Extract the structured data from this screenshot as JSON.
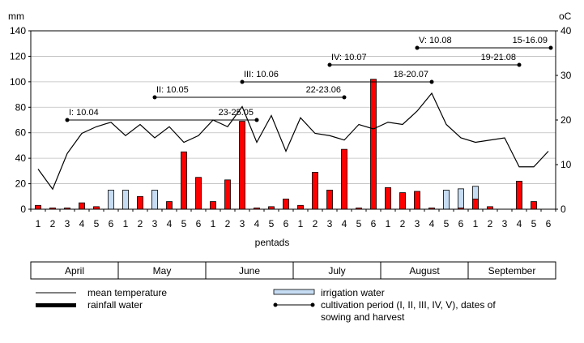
{
  "chart_data": {
    "type": "bar",
    "left_unit": "mm",
    "right_unit": "oC",
    "xlabel": "pentads",
    "left_ylim": [
      0,
      140
    ],
    "left_ticks": [
      "0",
      "20",
      "40",
      "60",
      "80",
      "100",
      "120",
      "140"
    ],
    "right_ylim": [
      0,
      40
    ],
    "right_ticks": [
      "0",
      "10",
      "20",
      "30",
      "40"
    ],
    "pentad_labels": [
      "1",
      "2",
      "3",
      "4",
      "5",
      "6",
      "1",
      "2",
      "3",
      "4",
      "5",
      "6",
      "1",
      "2",
      "3",
      "4",
      "5",
      "6",
      "1",
      "2",
      "3",
      "4",
      "5",
      "6",
      "1",
      "2",
      "3",
      "4",
      "5",
      "6",
      "1",
      "2",
      "3",
      "4",
      "5",
      "6"
    ],
    "months": [
      "April",
      "May",
      "June",
      "July",
      "August",
      "September"
    ],
    "series": [
      {
        "name": "irrigation water",
        "color": "#c6dcf2",
        "values": [
          0,
          0,
          0,
          0,
          0,
          15,
          15,
          0,
          15,
          0,
          0,
          0,
          0,
          0,
          0,
          0,
          0,
          0,
          0,
          0,
          0,
          0,
          0,
          0,
          0,
          0,
          0,
          0,
          15,
          16,
          18,
          0,
          0,
          0,
          0,
          0
        ]
      },
      {
        "name": "rainfall water",
        "color": "#ff0000",
        "values": [
          3,
          1,
          1,
          5,
          2,
          0,
          0,
          10,
          0,
          6,
          45,
          25,
          6,
          23,
          69,
          1,
          2,
          8,
          3,
          29,
          15,
          47,
          1,
          102,
          17,
          13,
          14,
          1,
          0,
          1,
          8,
          2,
          0,
          22,
          6,
          0
        ]
      },
      {
        "name": "mean temperature",
        "color": "#000000",
        "values": [
          9,
          4.5,
          12.5,
          17,
          18.5,
          19.5,
          16.5,
          19,
          16,
          18.5,
          15,
          16.5,
          20,
          18.5,
          23,
          15,
          21,
          13,
          20.5,
          17,
          16.5,
          15.5,
          19,
          18,
          19.5,
          19,
          22,
          26,
          19,
          16,
          15,
          15.5,
          16,
          9.5,
          9.5,
          13
        ]
      }
    ],
    "cultivation_periods": [
      {
        "label": "I: 10.04",
        "harvest": "23-25.05",
        "start": 3,
        "end": 16
      },
      {
        "label": "II: 10.05",
        "harvest": "22-23.06",
        "start": 9,
        "end": 22
      },
      {
        "label": "III: 10.06",
        "harvest": "18-20.07",
        "start": 15,
        "end": 28
      },
      {
        "label": "IV: 10.07",
        "harvest": "19-21.08",
        "start": 21,
        "end": 34
      },
      {
        "label": "V: 10.08",
        "harvest": "15-16.09",
        "start": 27,
        "end": 40
      }
    ],
    "legend": {
      "mean_temperature": "mean temperature",
      "rainfall_water": "rainfall water",
      "irrigation_water": "irrigation water",
      "cultivation_line1": "cultivation period (I, II, III, IV, V), dates of",
      "cultivation_line2": "sowing and harvest"
    },
    "grid": true,
    "legend_position": "bottom"
  }
}
